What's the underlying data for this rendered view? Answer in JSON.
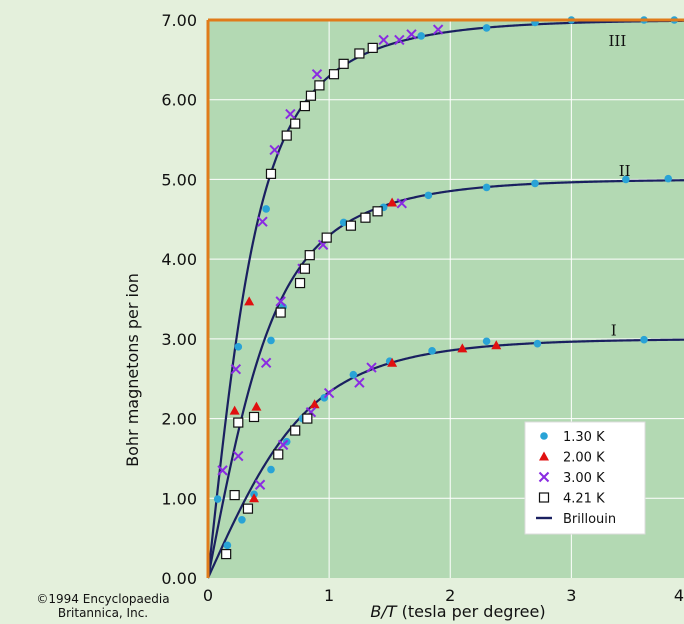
{
  "chart_data": {
    "type": "scatter",
    "xlabel_italic": "B/T",
    "xlabel_rest": " (tesla per degree)",
    "ylabel": "Bohr magnetons per ion",
    "xlim": [
      0,
      4
    ],
    "ylim": [
      0,
      7
    ],
    "x_ticks": [
      "0",
      "1",
      "2",
      "3",
      "4"
    ],
    "y_ticks": [
      "0.00",
      "1.00",
      "2.00",
      "3.00",
      "4.00",
      "5.00",
      "6.00",
      "7.00"
    ],
    "grid": true,
    "legend_position": "lower-right",
    "colors": {
      "plot_bg": "#b3d9b3",
      "border": "#e07b1a",
      "curve": "#1a2060",
      "s1": "#29a3d6",
      "s2": "#e01010",
      "s3": "#8a2be2",
      "s4": "#ffffff"
    },
    "curves": [
      {
        "label": "I",
        "J": 1.5,
        "g": 2
      },
      {
        "label": "II",
        "J": 2.5,
        "g": 2
      },
      {
        "label": "III",
        "J": 3.5,
        "g": 2
      }
    ],
    "series": [
      {
        "name": "1.30 K",
        "marker": "circle",
        "points": [
          [
            0.08,
            0.99
          ],
          [
            0.25,
            2.9
          ],
          [
            0.48,
            4.63
          ],
          [
            0.16,
            0.41
          ],
          [
            0.28,
            0.73
          ],
          [
            0.38,
            1.05
          ],
          [
            0.52,
            1.36
          ],
          [
            0.65,
            1.71
          ],
          [
            0.78,
            2.0
          ],
          [
            0.96,
            2.26
          ],
          [
            1.2,
            2.55
          ],
          [
            1.5,
            2.72
          ],
          [
            1.85,
            2.85
          ],
          [
            2.3,
            2.97
          ],
          [
            2.72,
            2.94
          ],
          [
            3.6,
            2.99
          ],
          [
            0.52,
            2.98
          ],
          [
            0.62,
            3.4
          ],
          [
            0.84,
            4.05
          ],
          [
            1.12,
            4.46
          ],
          [
            1.45,
            4.65
          ],
          [
            1.82,
            4.8
          ],
          [
            2.3,
            4.9
          ],
          [
            2.7,
            4.95
          ],
          [
            3.45,
            5.0
          ],
          [
            3.8,
            5.01
          ],
          [
            1.76,
            6.8
          ],
          [
            2.3,
            6.9
          ],
          [
            2.7,
            6.97
          ],
          [
            3.0,
            7.0
          ],
          [
            3.6,
            7.0
          ],
          [
            3.85,
            7.0
          ]
        ]
      },
      {
        "name": "2.00 K",
        "marker": "triangle",
        "points": [
          [
            0.22,
            2.1
          ],
          [
            0.34,
            3.47
          ],
          [
            0.4,
            2.15
          ],
          [
            0.38,
            1.0
          ],
          [
            0.88,
            2.18
          ],
          [
            1.52,
            2.7
          ],
          [
            2.1,
            2.88
          ],
          [
            2.38,
            2.92
          ],
          [
            1.52,
            4.71
          ]
        ]
      },
      {
        "name": "3.00 K",
        "marker": "cross",
        "points": [
          [
            0.12,
            1.35
          ],
          [
            0.23,
            2.62
          ],
          [
            0.45,
            4.47
          ],
          [
            0.25,
            1.53
          ],
          [
            0.43,
            1.17
          ],
          [
            0.62,
            1.67
          ],
          [
            0.85,
            2.08
          ],
          [
            1.0,
            2.32
          ],
          [
            1.25,
            2.45
          ],
          [
            1.35,
            2.64
          ],
          [
            0.48,
            2.7
          ],
          [
            0.6,
            3.47
          ],
          [
            0.78,
            3.88
          ],
          [
            0.95,
            4.18
          ],
          [
            1.6,
            4.7
          ],
          [
            0.55,
            5.37
          ],
          [
            0.68,
            5.82
          ],
          [
            0.9,
            6.32
          ],
          [
            1.45,
            6.75
          ],
          [
            1.58,
            6.75
          ],
          [
            1.68,
            6.82
          ],
          [
            1.9,
            6.88
          ]
        ]
      },
      {
        "name": "4.21 K",
        "marker": "square",
        "points": [
          [
            0.15,
            0.3
          ],
          [
            0.22,
            1.04
          ],
          [
            0.25,
            1.95
          ],
          [
            0.33,
            0.87
          ],
          [
            0.38,
            2.02
          ],
          [
            0.58,
            1.55
          ],
          [
            0.72,
            1.85
          ],
          [
            0.82,
            2.0
          ],
          [
            0.6,
            3.33
          ],
          [
            0.76,
            3.7
          ],
          [
            0.8,
            3.88
          ],
          [
            0.84,
            4.05
          ],
          [
            0.98,
            4.27
          ],
          [
            1.18,
            4.42
          ],
          [
            1.3,
            4.52
          ],
          [
            1.4,
            4.6
          ],
          [
            0.52,
            5.07
          ],
          [
            0.65,
            5.55
          ],
          [
            0.72,
            5.7
          ],
          [
            0.8,
            5.92
          ],
          [
            0.85,
            6.05
          ],
          [
            0.92,
            6.18
          ],
          [
            1.04,
            6.32
          ],
          [
            1.12,
            6.45
          ],
          [
            1.25,
            6.58
          ],
          [
            1.36,
            6.65
          ]
        ]
      },
      {
        "name": "Brillouin",
        "marker": "line",
        "points": []
      }
    ]
  },
  "copyright": {
    "line1": "©1994 Encyclopaedia",
    "line2": "Britannica, Inc."
  }
}
